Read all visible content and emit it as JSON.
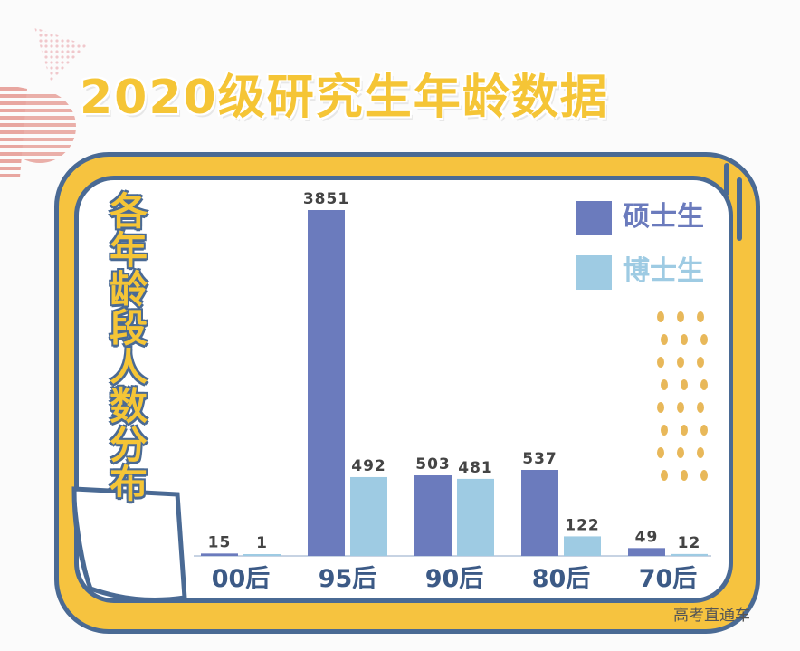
{
  "title": "2020级研究生年龄数据",
  "side_title": "各年龄段人数分布",
  "source": "高考直通车",
  "colors": {
    "master": "#6b7bbd",
    "phd": "#9ecbe3",
    "frame": "#f6c33f",
    "border": "#4a6a94",
    "accent": "#f5c536"
  },
  "chart_data": {
    "type": "bar",
    "categories": [
      "00后",
      "95后",
      "90后",
      "80后",
      "70后"
    ],
    "series": [
      {
        "name": "硕士生",
        "values": [
          15,
          3851,
          503,
          537,
          49
        ],
        "color": "#6b7bbd"
      },
      {
        "name": "博士生",
        "values": [
          1,
          492,
          481,
          122,
          12
        ],
        "color": "#9ecbe3"
      }
    ],
    "ylim": [
      0,
      3851
    ],
    "scale": "broken",
    "legend": "top-right",
    "grid": false
  }
}
